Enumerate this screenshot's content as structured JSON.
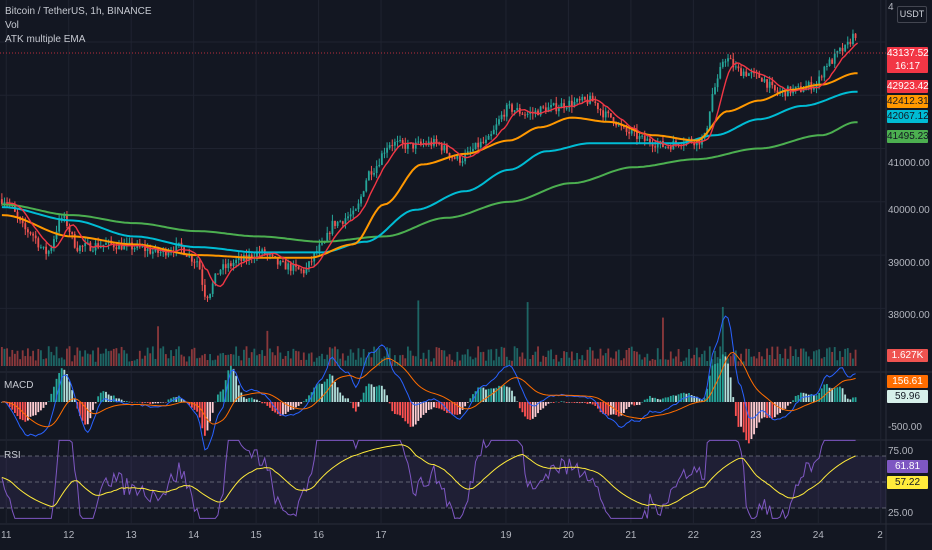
{
  "legend": {
    "symbol": "Bitcoin / TetherUS, 1h, BINANCE",
    "vol": "Vol",
    "indicator": "ATK multiple EMA"
  },
  "currency": "USDT",
  "macd_label": "MACD",
  "rsi_label": "RSI",
  "price_tags": {
    "last": "43137.52",
    "countdown": "16:17",
    "ema_orange_hi": "42923.42",
    "ema_orange": "42412.31",
    "ema_blue": "42067.12",
    "ema_green": "41495.23",
    "volume": "1.627K",
    "macd": "156.61",
    "macd_signal": "59.96",
    "rsi": "61.81",
    "rsi_ma": "57.22"
  },
  "price_scale": [
    "4",
    "41000.00",
    "40000.00",
    "39000.00",
    "38000.00"
  ],
  "macd_scale": [
    "-500.00"
  ],
  "rsi_scale": [
    "75.00",
    "25.00"
  ],
  "day_labels": [
    "11",
    "12",
    "13",
    "14",
    "15",
    "16",
    "17",
    "19",
    "20",
    "21",
    "22",
    "23",
    "24",
    "2"
  ],
  "colors": {
    "background": "#131722",
    "up": "#26a69a",
    "down": "#ef5350",
    "ema_fast": "#f23645",
    "ema_orange": "#ff9800",
    "ema_blue": "#00bcd4",
    "ema_green": "#4caf50",
    "macd_line": "#2962ff",
    "signal_line": "#ff6d00",
    "rsi_line": "#7e57c2",
    "rsi_ma_line": "#ffeb3b"
  },
  "chart_data": {
    "type": "candlestick",
    "x_unit": "day_of_month",
    "price_ylim": [
      37500,
      43600
    ],
    "price_anchors": [
      [
        10.9,
        40050
      ],
      [
        11.3,
        39450
      ],
      [
        11.6,
        39050
      ],
      [
        11.85,
        39700
      ],
      [
        12.1,
        39150
      ],
      [
        12.6,
        39200
      ],
      [
        13.0,
        39150
      ],
      [
        13.4,
        39050
      ],
      [
        13.7,
        39150
      ],
      [
        14.0,
        38900
      ],
      [
        14.15,
        38250
      ],
      [
        14.4,
        38750
      ],
      [
        14.7,
        38900
      ],
      [
        15.0,
        39050
      ],
      [
        15.4,
        38800
      ],
      [
        15.7,
        38700
      ],
      [
        16.0,
        39150
      ],
      [
        16.2,
        39600
      ],
      [
        16.5,
        39750
      ],
      [
        16.8,
        40600
      ],
      [
        17.1,
        41100
      ],
      [
        17.4,
        41050
      ],
      [
        17.8,
        41100
      ],
      [
        18.2,
        40800
      ],
      [
        18.6,
        41100
      ],
      [
        19.0,
        41750
      ],
      [
        19.3,
        41650
      ],
      [
        19.6,
        41750
      ],
      [
        20.0,
        41850
      ],
      [
        20.3,
        41900
      ],
      [
        20.6,
        41600
      ],
      [
        20.9,
        41300
      ],
      [
        21.2,
        41150
      ],
      [
        21.5,
        41050
      ],
      [
        21.8,
        41150
      ],
      [
        22.1,
        41150
      ],
      [
        22.3,
        42150
      ],
      [
        22.45,
        42700
      ],
      [
        22.7,
        42450
      ],
      [
        23.0,
        42350
      ],
      [
        23.3,
        42050
      ],
      [
        23.6,
        42100
      ],
      [
        23.9,
        42200
      ],
      [
        24.1,
        42600
      ],
      [
        24.35,
        42850
      ],
      [
        24.55,
        43150
      ]
    ],
    "ema_orange_anchors": [
      [
        10.9,
        39750
      ],
      [
        12.0,
        39350
      ],
      [
        13.0,
        39200
      ],
      [
        14.0,
        39000
      ],
      [
        15.0,
        38950
      ],
      [
        15.8,
        38950
      ],
      [
        16.5,
        39200
      ],
      [
        17.0,
        39950
      ],
      [
        17.6,
        40700
      ],
      [
        18.3,
        40900
      ],
      [
        19.0,
        41150
      ],
      [
        19.5,
        41400
      ],
      [
        20.0,
        41580
      ],
      [
        20.6,
        41500
      ],
      [
        21.3,
        41250
      ],
      [
        22.0,
        41150
      ],
      [
        22.5,
        41700
      ],
      [
        23.0,
        41900
      ],
      [
        23.5,
        42100
      ],
      [
        24.0,
        42200
      ],
      [
        24.55,
        42412
      ]
    ],
    "ema_blue_anchors": [
      [
        10.9,
        39900
      ],
      [
        12.0,
        39650
      ],
      [
        13.0,
        39350
      ],
      [
        14.0,
        39150
      ],
      [
        15.0,
        39050
      ],
      [
        16.0,
        39050
      ],
      [
        16.7,
        39250
      ],
      [
        17.5,
        39850
      ],
      [
        18.3,
        40200
      ],
      [
        19.0,
        40600
      ],
      [
        19.6,
        40950
      ],
      [
        20.3,
        41100
      ],
      [
        21.0,
        41100
      ],
      [
        21.7,
        41100
      ],
      [
        22.3,
        41250
      ],
      [
        23.0,
        41550
      ],
      [
        23.7,
        41800
      ],
      [
        24.55,
        42067
      ]
    ],
    "ema_green_anchors": [
      [
        10.9,
        39950
      ],
      [
        12.0,
        39750
      ],
      [
        13.0,
        39600
      ],
      [
        14.0,
        39450
      ],
      [
        15.0,
        39350
      ],
      [
        16.0,
        39250
      ],
      [
        17.0,
        39350
      ],
      [
        18.0,
        39700
      ],
      [
        19.0,
        40000
      ],
      [
        20.0,
        40350
      ],
      [
        21.0,
        40650
      ],
      [
        22.0,
        40800
      ],
      [
        23.0,
        41000
      ],
      [
        24.0,
        41250
      ],
      [
        24.55,
        41495
      ]
    ],
    "rsi_range": [
      0,
      100
    ],
    "rsi_levels": [
      70,
      50,
      30
    ],
    "macd_ylim": [
      -600,
      600
    ],
    "x_ticks": [
      10.95,
      11.95,
      12.95,
      13.95,
      14.95,
      15.95,
      16.95,
      18.95,
      19.95,
      20.95,
      21.95,
      22.95,
      23.95,
      24.95
    ]
  }
}
